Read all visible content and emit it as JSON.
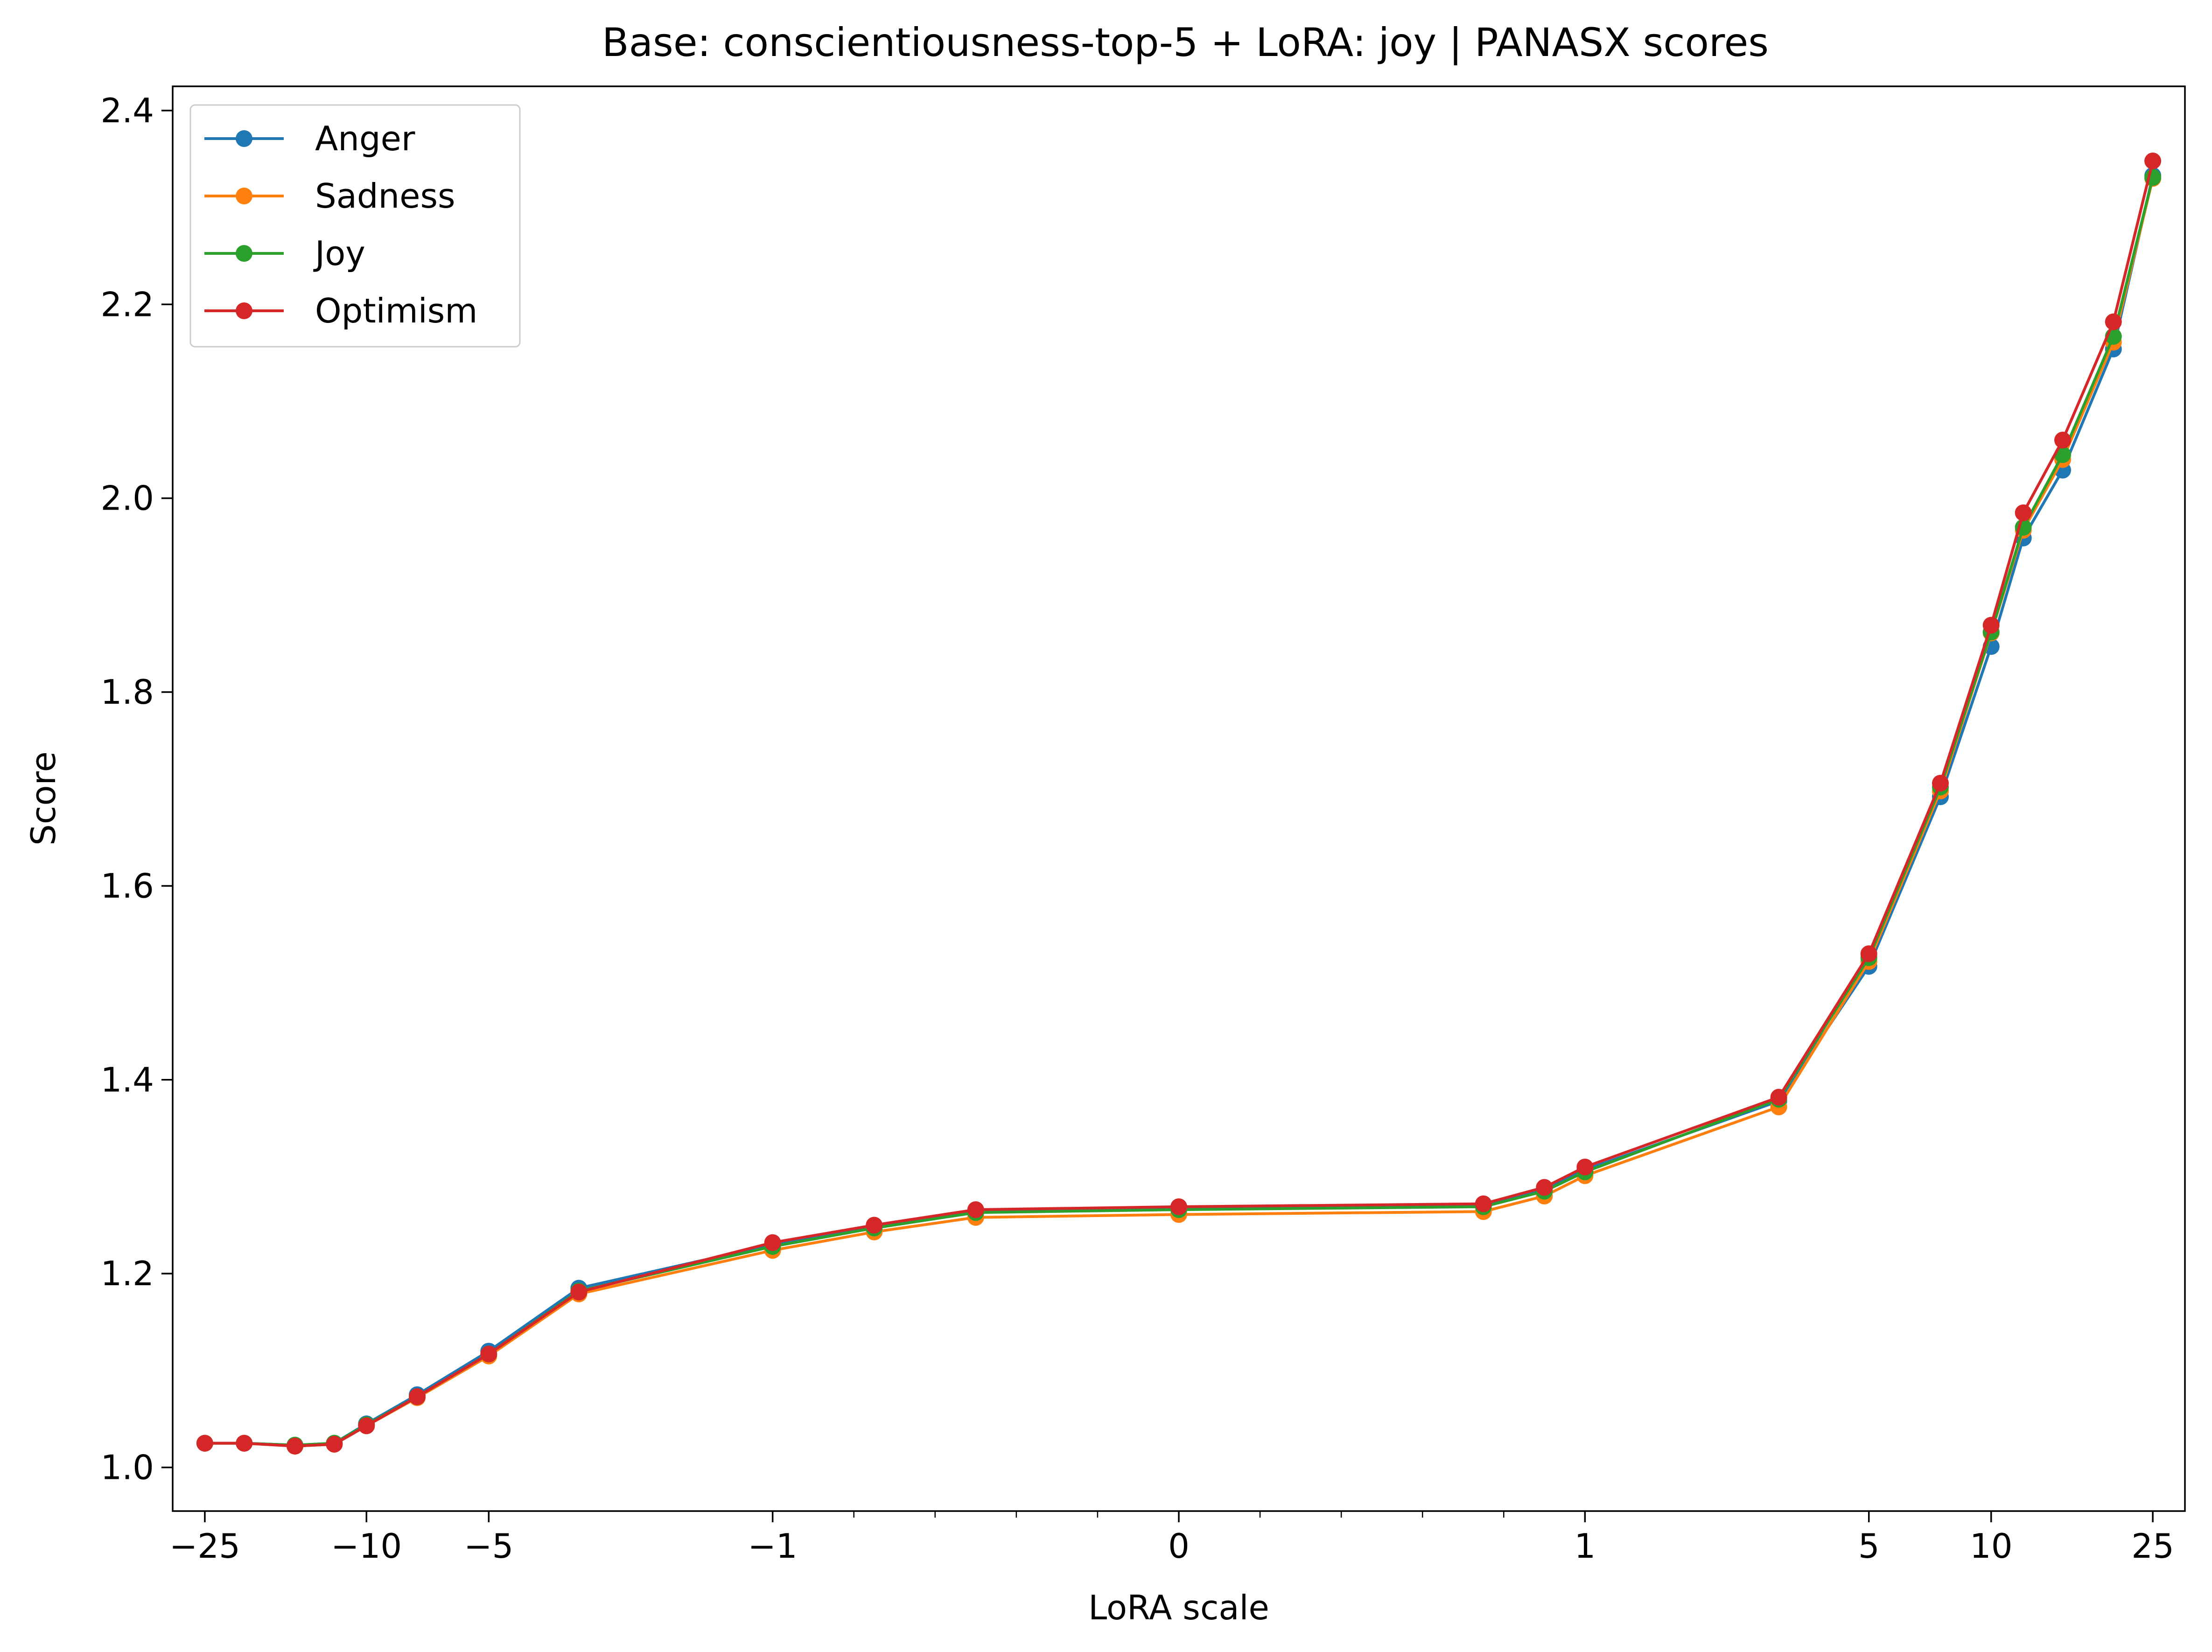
{
  "chart_data": {
    "type": "line",
    "title": "Base: conscientiousness-top-5 + LoRA: joy | PANASX scores",
    "xlabel": "LoRA scale",
    "ylabel": "Score",
    "xscale": "symlog",
    "xlim": [
      -30,
      30
    ],
    "ylim": [
      0.955,
      2.425
    ],
    "grid": false,
    "legend_position": "upper-left",
    "x_tick_values": [
      -25,
      -10,
      -5,
      -1,
      0,
      1,
      5,
      10,
      25
    ],
    "x_tick_labels": [
      "−25",
      "−10",
      "−5",
      "−1",
      "0",
      "1",
      "5",
      "10",
      "25"
    ],
    "y_tick_values": [
      1.0,
      1.2,
      1.4,
      1.6,
      1.8,
      2.0,
      2.2,
      2.4
    ],
    "y_tick_labels": [
      "1.0",
      "1.2",
      "1.4",
      "1.6",
      "1.8",
      "2.0",
      "2.2",
      "2.4"
    ],
    "x": [
      -25,
      -20,
      -15,
      -12,
      -10,
      -7.5,
      -5,
      -3,
      -1,
      -0.75,
      -0.5,
      0,
      0.75,
      0.9,
      1,
      3,
      5,
      7.5,
      10,
      12,
      15,
      20,
      25
    ],
    "series": [
      {
        "name": "Anger",
        "color": "#1f77b4",
        "values": [
          1.025,
          1.025,
          1.023,
          1.025,
          1.045,
          1.075,
          1.12,
          1.185,
          1.23,
          1.248,
          1.264,
          1.267,
          1.27,
          1.287,
          1.307,
          1.378,
          1.517,
          1.692,
          1.847,
          1.959,
          2.029,
          2.154,
          2.333
        ]
      },
      {
        "name": "Sadness",
        "color": "#ff7f0e",
        "values": [
          1.025,
          1.025,
          1.022,
          1.024,
          1.043,
          1.072,
          1.115,
          1.179,
          1.224,
          1.243,
          1.258,
          1.261,
          1.264,
          1.28,
          1.301,
          1.372,
          1.522,
          1.698,
          1.861,
          1.967,
          2.04,
          2.161,
          2.33
        ]
      },
      {
        "name": "Joy",
        "color": "#2ca02c",
        "values": [
          1.025,
          1.025,
          1.023,
          1.025,
          1.044,
          1.073,
          1.117,
          1.182,
          1.228,
          1.247,
          1.263,
          1.266,
          1.269,
          1.285,
          1.305,
          1.38,
          1.526,
          1.702,
          1.862,
          1.97,
          2.045,
          2.167,
          2.331
        ]
      },
      {
        "name": "Optimism",
        "color": "#d62728",
        "values": [
          1.025,
          1.025,
          1.022,
          1.024,
          1.043,
          1.073,
          1.117,
          1.181,
          1.232,
          1.25,
          1.266,
          1.269,
          1.272,
          1.289,
          1.31,
          1.382,
          1.53,
          1.706,
          1.869,
          1.985,
          2.06,
          2.182,
          2.348
        ]
      }
    ]
  }
}
